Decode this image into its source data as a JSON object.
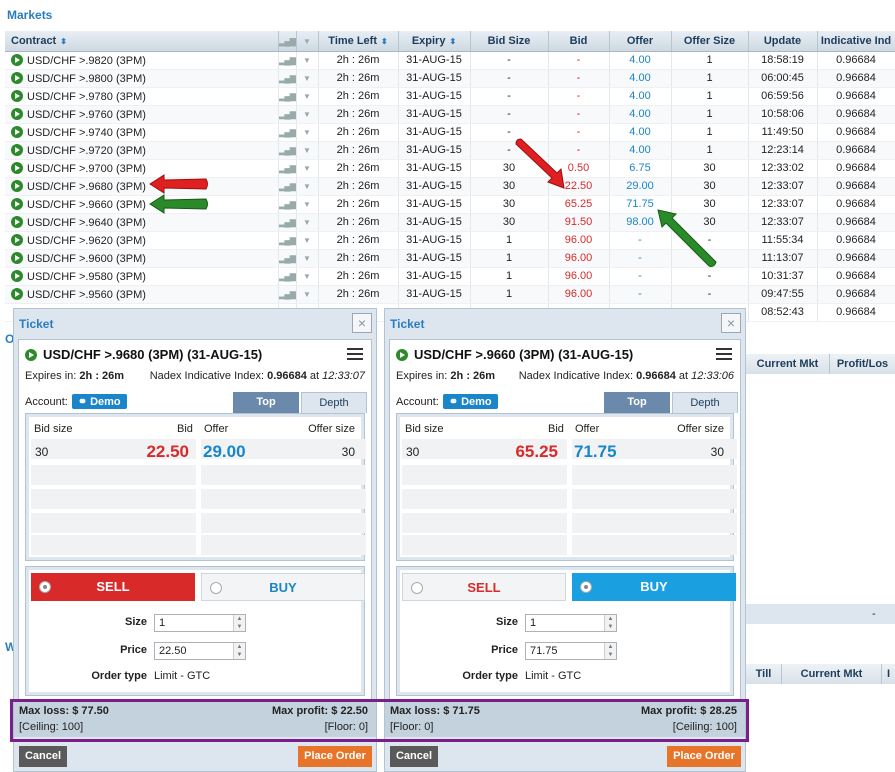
{
  "markets": {
    "title": "Markets",
    "columns": [
      "Contract",
      "",
      "",
      "Time Left",
      "Expiry",
      "Bid Size",
      "Bid",
      "Offer",
      "Offer Size",
      "Update",
      "Indicative Ind"
    ],
    "rows": [
      {
        "contract": "USD/CHF >.9820 (3PM)",
        "time_left": "2h : 26m",
        "expiry": "31-AUG-15",
        "bid_size": "-",
        "bid": "-",
        "offer": "4.00",
        "offer_size": "1",
        "update": "18:58:19",
        "index": "0.96684"
      },
      {
        "contract": "USD/CHF >.9800 (3PM)",
        "time_left": "2h : 26m",
        "expiry": "31-AUG-15",
        "bid_size": "-",
        "bid": "-",
        "offer": "4.00",
        "offer_size": "1",
        "update": "06:00:45",
        "index": "0.96684"
      },
      {
        "contract": "USD/CHF >.9780 (3PM)",
        "time_left": "2h : 26m",
        "expiry": "31-AUG-15",
        "bid_size": "-",
        "bid": "-",
        "offer": "4.00",
        "offer_size": "1",
        "update": "06:59:56",
        "index": "0.96684"
      },
      {
        "contract": "USD/CHF >.9760 (3PM)",
        "time_left": "2h : 26m",
        "expiry": "31-AUG-15",
        "bid_size": "-",
        "bid": "-",
        "offer": "4.00",
        "offer_size": "1",
        "update": "10:58:06",
        "index": "0.96684"
      },
      {
        "contract": "USD/CHF >.9740 (3PM)",
        "time_left": "2h : 26m",
        "expiry": "31-AUG-15",
        "bid_size": "-",
        "bid": "-",
        "offer": "4.00",
        "offer_size": "1",
        "update": "11:49:50",
        "index": "0.96684"
      },
      {
        "contract": "USD/CHF >.9720 (3PM)",
        "time_left": "2h : 26m",
        "expiry": "31-AUG-15",
        "bid_size": "-",
        "bid": "-",
        "offer": "4.00",
        "offer_size": "1",
        "update": "12:23:14",
        "index": "0.96684"
      },
      {
        "contract": "USD/CHF >.9700 (3PM)",
        "time_left": "2h : 26m",
        "expiry": "31-AUG-15",
        "bid_size": "30",
        "bid": "0.50",
        "offer": "6.75",
        "offer_size": "30",
        "update": "12:33:02",
        "index": "0.96684"
      },
      {
        "contract": "USD/CHF >.9680 (3PM)",
        "time_left": "2h : 26m",
        "expiry": "31-AUG-15",
        "bid_size": "30",
        "bid": "22.50",
        "offer": "29.00",
        "offer_size": "30",
        "update": "12:33:07",
        "index": "0.96684"
      },
      {
        "contract": "USD/CHF >.9660 (3PM)",
        "time_left": "2h : 26m",
        "expiry": "31-AUG-15",
        "bid_size": "30",
        "bid": "65.25",
        "offer": "71.75",
        "offer_size": "30",
        "update": "12:33:07",
        "index": "0.96684"
      },
      {
        "contract": "USD/CHF >.9640 (3PM)",
        "time_left": "2h : 26m",
        "expiry": "31-AUG-15",
        "bid_size": "30",
        "bid": "91.50",
        "offer": "98.00",
        "offer_size": "30",
        "update": "12:33:07",
        "index": "0.96684"
      },
      {
        "contract": "USD/CHF >.9620 (3PM)",
        "time_left": "2h : 26m",
        "expiry": "31-AUG-15",
        "bid_size": "1",
        "bid": "96.00",
        "offer": "-",
        "offer_size": "-",
        "update": "11:55:34",
        "index": "0.96684"
      },
      {
        "contract": "USD/CHF >.9600 (3PM)",
        "time_left": "2h : 26m",
        "expiry": "31-AUG-15",
        "bid_size": "1",
        "bid": "96.00",
        "offer": "-",
        "offer_size": "-",
        "update": "11:13:07",
        "index": "0.96684"
      },
      {
        "contract": "USD/CHF >.9580 (3PM)",
        "time_left": "2h : 26m",
        "expiry": "31-AUG-15",
        "bid_size": "1",
        "bid": "96.00",
        "offer": "-",
        "offer_size": "-",
        "update": "10:31:37",
        "index": "0.96684"
      },
      {
        "contract": "USD/CHF >.9560 (3PM)",
        "time_left": "2h : 26m",
        "expiry": "31-AUG-15",
        "bid_size": "1",
        "bid": "96.00",
        "offer": "-",
        "offer_size": "-",
        "update": "09:47:55",
        "index": "0.96684"
      },
      {
        "contract": "",
        "time_left": "",
        "expiry": "",
        "bid_size": "",
        "bid": "",
        "offer": "",
        "offer_size": "",
        "update": "08:52:43",
        "index": "0.96684"
      }
    ]
  },
  "bg_panels": {
    "upper_col1": "Current Mkt",
    "upper_col2": "Profit/Los",
    "upper_dash": "-",
    "lower_col1": "Till",
    "lower_col2": "Current Mkt",
    "lower_col3": "I",
    "upper_label_initial": "O",
    "lower_label_initial": "W"
  },
  "tickets": [
    {
      "title": "Ticket",
      "close_icon": "×",
      "contract": "USD/CHF >.9680 (3PM) (31-AUG-15)",
      "expires_label": "Expires in:",
      "expires_value": "2h : 26m",
      "index_label": "Nadex Indicative Index:",
      "index_value": "0.96684",
      "index_time": "12:33:07",
      "account_label": "Account:",
      "account_value": "Demo",
      "tab_top": "Top",
      "tab_depth": "Depth",
      "depth_bid_size_hdr": "Bid size",
      "depth_bid_hdr": "Bid",
      "depth_offer_hdr": "Offer",
      "depth_offer_size_hdr": "Offer size",
      "depth_bid_size": "30",
      "depth_bid": "22.50",
      "depth_offer": "29.00",
      "depth_offer_size": "30",
      "sell_label": "SELL",
      "buy_label": "BUY",
      "active_side": "sell",
      "size_label": "Size",
      "size_value": "1",
      "price_label": "Price",
      "price_value": "22.50",
      "order_type_label": "Order type",
      "order_type_value": "Limit - GTC",
      "max_loss_label": "Max loss:",
      "max_loss_value": "$ 77.50",
      "max_profit_label": "Max profit:",
      "max_profit_value": "$ 22.50",
      "left_note": "[Ceiling: 100]",
      "right_note": "[Floor: 0]",
      "cancel_label": "Cancel",
      "place_label": "Place Order"
    },
    {
      "title": "Ticket",
      "close_icon": "×",
      "contract": "USD/CHF >.9660 (3PM) (31-AUG-15)",
      "expires_label": "Expires in:",
      "expires_value": "2h : 26m",
      "index_label": "Nadex Indicative Index:",
      "index_value": "0.96684",
      "index_time": "12:33:06",
      "account_label": "Account:",
      "account_value": "Demo",
      "tab_top": "Top",
      "tab_depth": "Depth",
      "depth_bid_size_hdr": "Bid size",
      "depth_bid_hdr": "Bid",
      "depth_offer_hdr": "Offer",
      "depth_offer_size_hdr": "Offer size",
      "depth_bid_size": "30",
      "depth_bid": "65.25",
      "depth_offer": "71.75",
      "depth_offer_size": "30",
      "sell_label": "SELL",
      "buy_label": "BUY",
      "active_side": "buy",
      "size_label": "Size",
      "size_value": "1",
      "price_label": "Price",
      "price_value": "71.75",
      "order_type_label": "Order type",
      "order_type_value": "Limit - GTC",
      "max_loss_label": "Max loss:",
      "max_loss_value": "$ 71.75",
      "max_profit_label": "Max profit:",
      "max_profit_value": "$ 28.25",
      "left_note": "[Floor: 0]",
      "right_note": "[Ceiling: 100]",
      "cancel_label": "Cancel",
      "place_label": "Place Order"
    }
  ],
  "colors": {
    "bid_red": "#d92a2a",
    "offer_blue": "#1a85c8",
    "sell_red": "#d92a2a",
    "buy_blue": "#1aa0e0",
    "place_orange": "#e8742a",
    "highlight_purple": "#7a1f8a",
    "arrow_red": "#e02020",
    "arrow_green": "#2a8a2a"
  }
}
